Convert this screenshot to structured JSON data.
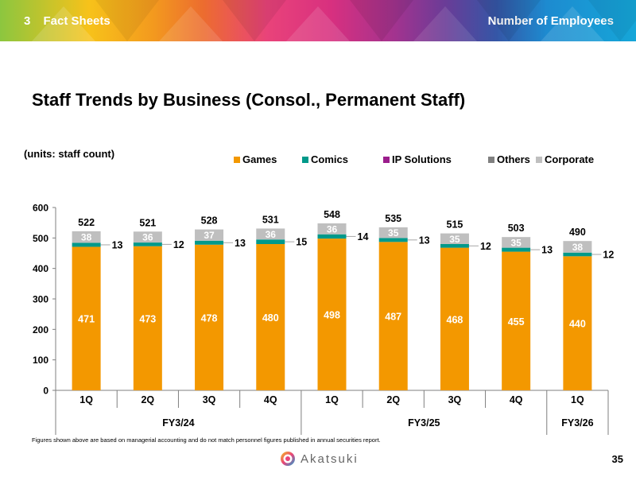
{
  "header": {
    "section_number": "3",
    "section_title": "Fact Sheets",
    "right_title": "Number of Employees"
  },
  "page_title": "Staff Trends by Business (Consol., Permanent Staff)",
  "units_label": "(units: staff count)",
  "footnote": "Figures shown above are based on managerial accounting and do not match personnel figures published in annual securities report.",
  "logo_text": "Akatsuki",
  "page_number": "35",
  "colors": {
    "games": "#F39800",
    "comics": "#00998A",
    "ip_solutions": "#9B1D8C",
    "others": "#808080",
    "corporate": "#BFBFBF"
  },
  "chart_data": {
    "type": "bar",
    "stacked": true,
    "title": "Staff Trends by Business (Consol., Permanent Staff)",
    "ylabel": "(units: staff count)",
    "ylim": [
      0,
      600
    ],
    "yticks": [
      0,
      100,
      200,
      300,
      400,
      500,
      600
    ],
    "categories": [
      "1Q",
      "2Q",
      "3Q",
      "4Q",
      "1Q",
      "2Q",
      "3Q",
      "4Q",
      "1Q"
    ],
    "groups": [
      {
        "label": "FY3/24",
        "count": 4
      },
      {
        "label": "FY3/25",
        "count": 4
      },
      {
        "label": "FY3/26",
        "count": 1
      }
    ],
    "series": [
      {
        "name": "Games",
        "values": [
          471,
          473,
          478,
          480,
          498,
          487,
          468,
          455,
          440
        ]
      },
      {
        "name": "Comics",
        "values": [
          13,
          12,
          13,
          15,
          14,
          13,
          12,
          13,
          12
        ]
      },
      {
        "name": "IP Solutions",
        "values": [
          0,
          0,
          0,
          0,
          0,
          0,
          0,
          0,
          0
        ]
      },
      {
        "name": "Others",
        "values": [
          0,
          0,
          0,
          0,
          0,
          0,
          0,
          0,
          0
        ]
      },
      {
        "name": "Corporate",
        "values": [
          38,
          36,
          37,
          36,
          36,
          35,
          35,
          35,
          38
        ]
      }
    ],
    "totals": [
      522,
      521,
      528,
      531,
      548,
      535,
      515,
      503,
      490
    ],
    "legend": [
      "Games",
      "Comics",
      "IP Solutions",
      "Others",
      "Corporate"
    ]
  }
}
